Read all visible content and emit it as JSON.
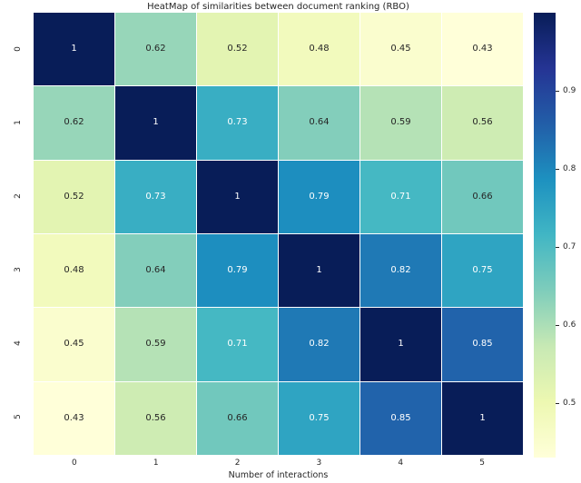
{
  "figure": {
    "title": "HeatMap of similarities between document ranking (RBO)",
    "xlabel": "Number of interactions",
    "ylabel": "Number of interactions"
  },
  "chart_data": {
    "type": "heatmap",
    "title": "HeatMap of similarities between document ranking (RBO)",
    "xlabel": "Number of interactions",
    "ylabel": "Number of interactions",
    "x_ticklabels": [
      "0",
      "1",
      "2",
      "3",
      "4",
      "5"
    ],
    "y_ticklabels": [
      "0",
      "1",
      "2",
      "3",
      "4",
      "5"
    ],
    "matrix": [
      [
        1,
        0.62,
        0.52,
        0.48,
        0.45,
        0.43
      ],
      [
        0.62,
        1,
        0.73,
        0.64,
        0.59,
        0.56
      ],
      [
        0.52,
        0.73,
        1,
        0.79,
        0.71,
        0.66
      ],
      [
        0.48,
        0.64,
        0.79,
        1,
        0.82,
        0.75
      ],
      [
        0.45,
        0.59,
        0.71,
        0.82,
        1,
        0.85
      ],
      [
        0.43,
        0.56,
        0.66,
        0.75,
        0.85,
        1
      ]
    ],
    "vmin": 0.43,
    "vmax": 1.0,
    "grid_lines": "white-1px",
    "legend_position": "colorbar-right",
    "colorbar_ticks": [
      0.9,
      0.8,
      0.7,
      0.6,
      0.5
    ],
    "colormap": {
      "name": "YlGnBu",
      "anchors": [
        [
          0.0,
          "#ffffd9"
        ],
        [
          0.125,
          "#edf8b1"
        ],
        [
          0.25,
          "#c7e9b4"
        ],
        [
          0.375,
          "#7fcdbb"
        ],
        [
          0.5,
          "#41b6c4"
        ],
        [
          0.625,
          "#1d91c0"
        ],
        [
          0.75,
          "#225ea8"
        ],
        [
          0.875,
          "#253494"
        ],
        [
          1.0,
          "#081d58"
        ]
      ]
    },
    "annotation_colors": {
      "on_dark": "#ffffff",
      "on_light": "#262626"
    }
  }
}
